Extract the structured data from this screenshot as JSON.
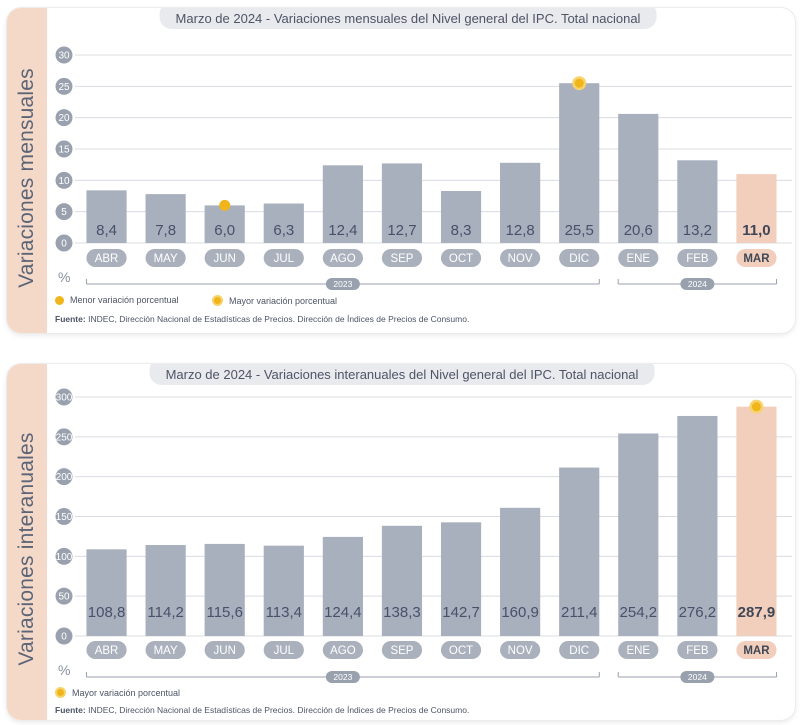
{
  "chart_data": [
    {
      "type": "bar",
      "title": "Marzo de 2024 - Variaciones mensuales del Nivel general del IPC. Total nacional",
      "ylabel": "Variaciones mensuales",
      "unit": "%",
      "categories": [
        "ABR",
        "MAY",
        "JUN",
        "JUL",
        "AGO",
        "SEP",
        "OCT",
        "NOV",
        "DIC",
        "ENE",
        "FEB",
        "MAR"
      ],
      "values": [
        8.4,
        7.8,
        6.0,
        6.3,
        12.4,
        12.7,
        8.3,
        12.8,
        25.5,
        20.6,
        13.2,
        11.0
      ],
      "value_labels": [
        "8,4",
        "7,8",
        "6,0",
        "6,3",
        "12,4",
        "12,7",
        "8,3",
        "12,8",
        "25,5",
        "20,6",
        "13,2",
        "11,0"
      ],
      "ylim": [
        0,
        30
      ],
      "yticks": [
        "0",
        "5",
        "10",
        "15",
        "20",
        "25",
        "30"
      ],
      "grid": true,
      "highlight_category": "MAR",
      "min_marker": "JUN",
      "max_marker": "DIC",
      "year_groups": [
        {
          "label": "2023",
          "from": "ABR",
          "to": "DIC"
        },
        {
          "label": "2024",
          "from": "ENE",
          "to": "MAR"
        }
      ],
      "legend": [
        {
          "marker": "min",
          "label": "Menor variación porcentual"
        },
        {
          "marker": "max",
          "label": "Mayor variación porcentual"
        }
      ],
      "source_label": "Fuente:",
      "source_text": "INDEC, Dirección Nacional de Estadísticas de Precios. Dirección de Índices de Precios de Consumo.",
      "colors": {
        "bar": "#a8b0bd",
        "highlight": "#f2cfbd",
        "marker": "#f1b51c"
      }
    },
    {
      "type": "bar",
      "title": "Marzo de 2024 - Variaciones interanuales del Nivel general del IPC. Total nacional",
      "ylabel": "Variaciones interanuales",
      "unit": "%",
      "categories": [
        "ABR",
        "MAY",
        "JUN",
        "JUL",
        "AGO",
        "SEP",
        "OCT",
        "NOV",
        "DIC",
        "ENE",
        "FEB",
        "MAR"
      ],
      "values": [
        108.8,
        114.2,
        115.6,
        113.4,
        124.4,
        138.3,
        142.7,
        160.9,
        211.4,
        254.2,
        276.2,
        287.9
      ],
      "value_labels": [
        "108,8",
        "114,2",
        "115,6",
        "113,4",
        "124,4",
        "138,3",
        "142,7",
        "160,9",
        "211,4",
        "254,2",
        "276,2",
        "287,9"
      ],
      "ylim": [
        0,
        300
      ],
      "yticks": [
        "0",
        "50",
        "100",
        "150",
        "200",
        "250",
        "300"
      ],
      "grid": true,
      "highlight_category": "MAR",
      "max_marker": "MAR",
      "year_groups": [
        {
          "label": "2023",
          "from": "ABR",
          "to": "DIC"
        },
        {
          "label": "2024",
          "from": "ENE",
          "to": "MAR"
        }
      ],
      "legend": [
        {
          "marker": "max",
          "label": "Mayor variación porcentual"
        }
      ],
      "source_label": "Fuente:",
      "source_text": "INDEC, Dirección Nacional de Estadísticas de Precios. Dirección de Índices de Precios de Consumo.",
      "colors": {
        "bar": "#a8b0bd",
        "highlight": "#f2cfbd",
        "marker": "#f1b51c"
      }
    }
  ]
}
